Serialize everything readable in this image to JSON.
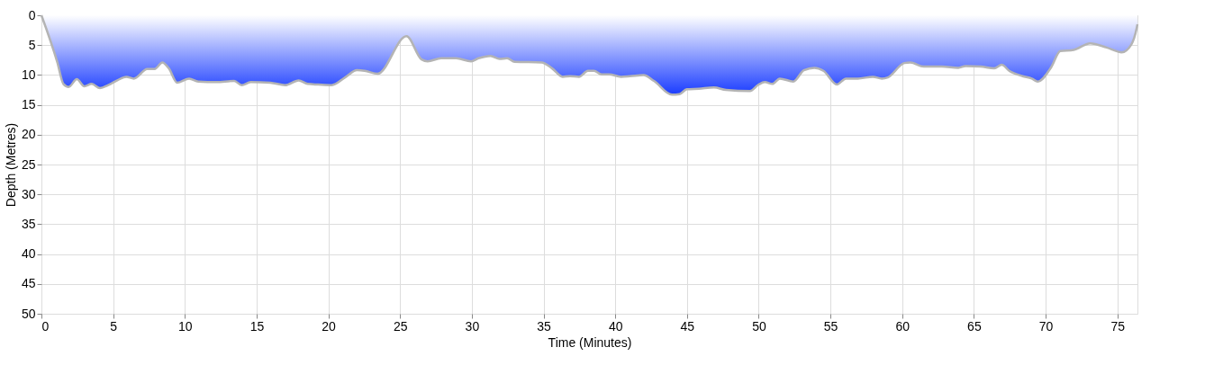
{
  "chart_data": {
    "type": "area",
    "xlabel": "Time (Minutes)",
    "ylabel": "Depth (Metres)",
    "x": [
      0,
      1.11,
      1.53,
      1.9,
      2.47,
      2.99,
      3.51,
      4.08,
      4.66,
      5.29,
      5.92,
      6.44,
      7.38,
      7.9,
      8.43,
      8.88,
      9.47,
      10.3,
      10.93,
      12.19,
      13.44,
      13.96,
      14.59,
      15.95,
      16.99,
      17.93,
      18.56,
      19.29,
      20.23,
      21.17,
      22.0,
      22.53,
      23.43,
      25.45,
      26.5,
      26.92,
      27.86,
      28.9,
      29.95,
      30.47,
      31.31,
      31.94,
      32.46,
      32.98,
      34.86,
      35.6,
      36.33,
      36.85,
      37.47,
      38.1,
      38.52,
      39.04,
      39.56,
      40.4,
      41.03,
      41.97,
      42.7,
      43.95,
      44.48,
      44.99,
      45.83,
      46.88,
      47.71,
      49.39,
      50.0,
      50.43,
      50.95,
      51.47,
      52.41,
      53.15,
      53.88,
      54.51,
      55.45,
      56.08,
      56.91,
      57.96,
      58.58,
      59.0,
      60.15,
      60.57,
      61.5,
      62.76,
      63.91,
      64.43,
      65.48,
      66.42,
      66.94,
      67.46,
      68.4,
      69.03,
      69.45,
      70.39,
      71.02,
      71.96,
      73.1,
      74.26,
      75.3,
      75.97,
      76.35,
      76.4
    ],
    "series": [
      {
        "color": "#1a3cff",
        "values": [
          0,
          7.9,
          11.5,
          12.0,
          10.7,
          11.9,
          11.5,
          12.2,
          11.7,
          10.9,
          10.3,
          10.6,
          9.0,
          9.0,
          7.9,
          8.9,
          11.3,
          10.6,
          11.1,
          11.2,
          11.0,
          11.7,
          11.2,
          11.3,
          11.7,
          10.9,
          11.5,
          11.6,
          11.7,
          10.4,
          9.2,
          9.3,
          9.8,
          3.5,
          7.4,
          7.7,
          7.2,
          7.2,
          7.7,
          7.2,
          6.8,
          7.3,
          7.2,
          7.8,
          7.9,
          8.9,
          10.3,
          10.2,
          10.3,
          9.3,
          9.3,
          9.9,
          9.9,
          10.3,
          10.2,
          10.0,
          11.0,
          13.3,
          13.2,
          12.4,
          12.3,
          12.1,
          12.5,
          12.7,
          11.6,
          11.2,
          11.5,
          10.6,
          11.1,
          9.2,
          8.8,
          9.3,
          11.6,
          10.6,
          10.6,
          10.3,
          10.6,
          10.4,
          8.0,
          7.9,
          8.6,
          8.6,
          8.8,
          8.5,
          8.6,
          8.9,
          8.3,
          9.3,
          10.2,
          10.6,
          11.1,
          8.7,
          6.0,
          5.8,
          4.7,
          5.4,
          6.2,
          4.9,
          2.1,
          1.5
        ]
      }
    ],
    "xlim": [
      0,
      76.4
    ],
    "xticks": [
      0,
      5,
      10,
      15,
      20,
      25,
      30,
      35,
      40,
      45,
      50,
      55,
      60,
      65,
      70,
      75
    ],
    "ylim": [
      50,
      0
    ],
    "yticks": [
      0,
      5,
      10,
      15,
      20,
      25,
      30,
      35,
      40,
      45,
      50
    ],
    "grid": true
  }
}
